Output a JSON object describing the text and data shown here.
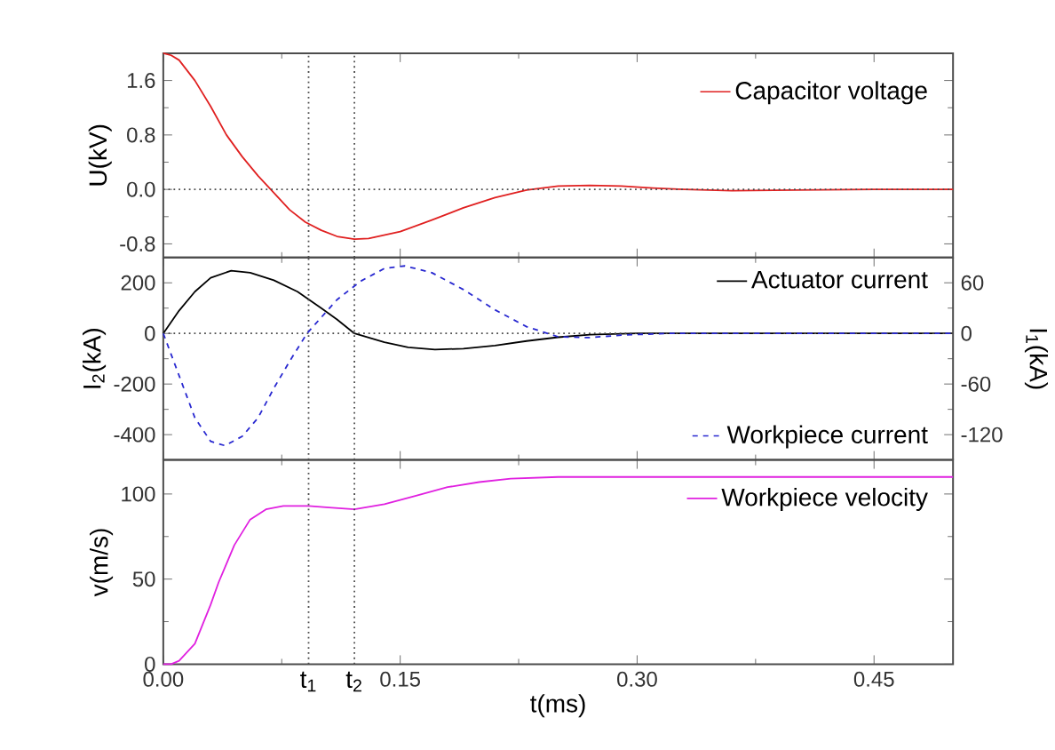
{
  "chart_data": [
    {
      "type": "line",
      "ylabel": "U(kV)",
      "xlim": [
        0,
        0.5
      ],
      "ylim": [
        -1.0,
        2.0
      ],
      "yticks": [
        1.6,
        0.8,
        {
          "value": 0,
          "label": "0.0"
        },
        -0.8
      ],
      "tick_labels": "y",
      "legend": "top right",
      "marker": "none",
      "ref_lines": [
        {
          "axis": "y",
          "value": 0,
          "line_style": "dotted"
        },
        {
          "axis": "x",
          "value": 0.092,
          "line_style": "dotted"
        },
        {
          "axis": "x",
          "value": 0.121,
          "line_style": "dotted"
        }
      ],
      "series": [
        {
          "name": "Capacitor voltage",
          "color": "#e02020",
          "line_style": "solid",
          "x": [
            0,
            0.005,
            0.01,
            0.02,
            0.03,
            0.04,
            0.05,
            0.06,
            0.068,
            0.08,
            0.09,
            0.1,
            0.11,
            0.121,
            0.13,
            0.15,
            0.17,
            0.19,
            0.21,
            0.23,
            0.25,
            0.27,
            0.29,
            0.31,
            0.33,
            0.36,
            0.4,
            0.45,
            0.5
          ],
          "values": [
            2.0,
            1.97,
            1.9,
            1.6,
            1.22,
            0.8,
            0.48,
            0.2,
            0.0,
            -0.3,
            -0.48,
            -0.6,
            -0.69,
            -0.73,
            -0.72,
            -0.62,
            -0.45,
            -0.27,
            -0.12,
            -0.01,
            0.05,
            0.06,
            0.05,
            0.02,
            0.0,
            -0.02,
            -0.01,
            0.0,
            0.0
          ]
        }
      ]
    },
    {
      "type": "line",
      "ylabel": "I$_{2}$(kA)",
      "y2label": "I$_{1}$(kA)",
      "xlim": [
        0,
        0.5
      ],
      "ylim": [
        -500,
        300
      ],
      "y2lim": [
        -150,
        90
      ],
      "yticks": [
        200,
        0,
        -200,
        -400
      ],
      "y2ticks": [
        60,
        0,
        -60,
        -120
      ],
      "tick_labels": "y",
      "legend": "right",
      "marker": "none",
      "ref_lines": [
        {
          "axis": "y",
          "value": 0,
          "line_style": "dotted"
        },
        {
          "axis": "x",
          "value": 0.092,
          "line_style": "dotted"
        },
        {
          "axis": "x",
          "value": 0.121,
          "line_style": "dotted"
        }
      ],
      "series": [
        {
          "name": "Actuator current",
          "color": "#000000",
          "line_style": "solid",
          "x": [
            0,
            0.01,
            0.02,
            0.03,
            0.043,
            0.055,
            0.07,
            0.085,
            0.1,
            0.11,
            0.121,
            0.14,
            0.155,
            0.172,
            0.19,
            0.21,
            0.23,
            0.25,
            0.27,
            0.3,
            0.35,
            0.4,
            0.5
          ],
          "values": [
            0,
            90,
            165,
            220,
            248,
            240,
            210,
            165,
            100,
            55,
            0,
            -35,
            -55,
            -64,
            -60,
            -48,
            -30,
            -15,
            -5,
            0,
            0,
            0,
            0
          ]
        },
        {
          "name": "Workpiece current",
          "color": "#2828d0",
          "line_style": "dashed",
          "axis": "y2",
          "x": [
            0,
            0.01,
            0.02,
            0.03,
            0.039,
            0.05,
            0.06,
            0.07,
            0.08,
            0.091,
            0.11,
            0.125,
            0.14,
            0.153,
            0.17,
            0.19,
            0.21,
            0.23,
            0.25,
            0.27,
            0.29,
            0.32,
            0.4,
            0.5
          ],
          "values": [
            0,
            -50,
            -100,
            -128,
            -133,
            -122,
            -100,
            -65,
            -33,
            0,
            40,
            62,
            77,
            80,
            72,
            52,
            28,
            8,
            -4,
            -5,
            -2,
            0,
            0,
            0
          ]
        }
      ]
    },
    {
      "type": "line",
      "ylabel": "v(m/s)",
      "xlabel": "t(ms)",
      "xlim": [
        0,
        0.5
      ],
      "ylim": [
        0,
        120
      ],
      "xticks": [
        {
          "value": 0,
          "label": "0.00"
        },
        0.15,
        {
          "value": 0.3,
          "label": "0.30"
        },
        0.45
      ],
      "yticks": [
        0,
        50,
        100
      ],
      "legend": "top right",
      "marker": "none",
      "ref_lines": [
        {
          "axis": "x",
          "value": 0.092,
          "label": "t$_{1}$",
          "line_style": "dotted"
        },
        {
          "axis": "x",
          "value": 0.121,
          "label": "t$_{2}$",
          "line_style": "dotted"
        }
      ],
      "series": [
        {
          "name": "Workpiece velocity",
          "color": "#e020e0",
          "line_style": "solid",
          "x": [
            0,
            0.005,
            0.01,
            0.02,
            0.03,
            0.035,
            0.045,
            0.055,
            0.065,
            0.076,
            0.092,
            0.105,
            0.121,
            0.14,
            0.16,
            0.18,
            0.2,
            0.22,
            0.25,
            0.3,
            0.4,
            0.5
          ],
          "values": [
            0,
            0,
            2,
            12,
            35,
            48,
            70,
            85,
            91,
            93,
            93,
            92,
            91,
            94,
            99,
            104,
            107,
            109,
            110,
            110,
            110,
            110
          ]
        }
      ]
    }
  ]
}
